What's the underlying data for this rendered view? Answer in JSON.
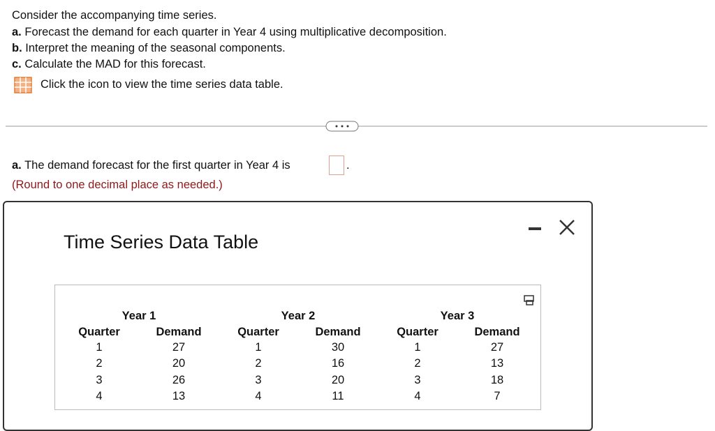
{
  "question": {
    "intro": "Consider the accompanying time series.",
    "parts": [
      {
        "label": "a.",
        "text": "Forecast the demand for each quarter in Year 4 using multiplicative decomposition."
      },
      {
        "label": "b.",
        "text": "Interpret the meaning of the seasonal components."
      },
      {
        "label": "c.",
        "text": "Calculate the MAD for this forecast."
      }
    ],
    "link": "Click the icon to view the time series data table."
  },
  "answer": {
    "label": "a.",
    "text": "The demand forecast for the first quarter in Year 4 is",
    "end": ".",
    "note": "(Round to one decimal place as needed.)"
  },
  "popup": {
    "title": "Time Series Data Table",
    "table": {
      "groups": [
        {
          "year": "Year 1",
          "columns": [
            "Quarter",
            "Demand"
          ],
          "rows": [
            [
              1,
              27
            ],
            [
              2,
              20
            ],
            [
              3,
              26
            ],
            [
              4,
              13
            ]
          ]
        },
        {
          "year": "Year 2",
          "columns": [
            "Quarter",
            "Demand"
          ],
          "rows": [
            [
              1,
              30
            ],
            [
              2,
              16
            ],
            [
              3,
              20
            ],
            [
              4,
              11
            ]
          ]
        },
        {
          "year": "Year 3",
          "columns": [
            "Quarter",
            "Demand"
          ],
          "rows": [
            [
              1,
              27
            ],
            [
              2,
              13
            ],
            [
              3,
              18
            ],
            [
              4,
              7
            ]
          ]
        }
      ]
    }
  }
}
